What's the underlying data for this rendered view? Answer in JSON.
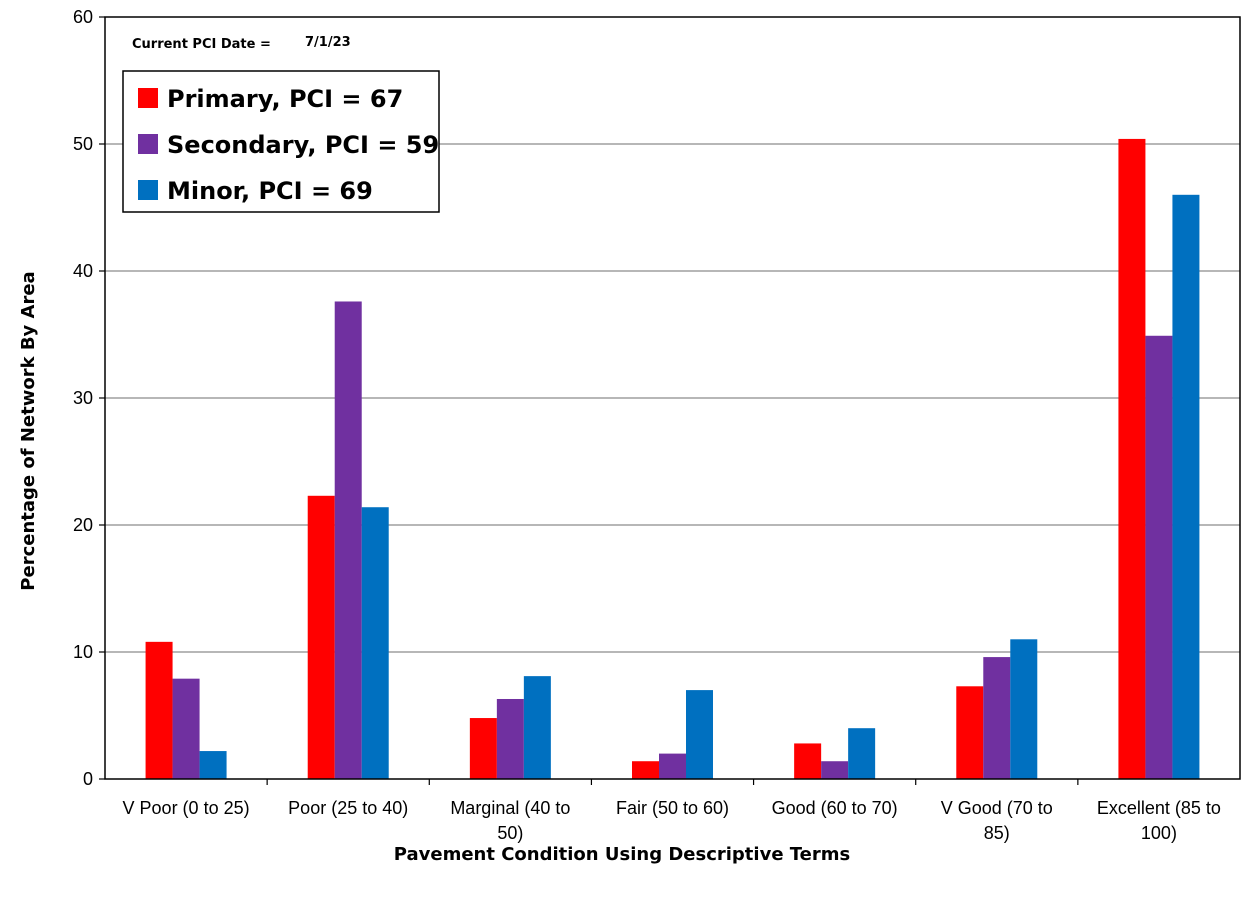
{
  "chart_data": {
    "type": "bar",
    "annotation_label": "Current PCI Date =",
    "annotation_value": "7/1/23",
    "xlabel": "Pavement Condition Using Descriptive Terms",
    "ylabel": "Percentage of Network By Area",
    "ylim": [
      0,
      60
    ],
    "yticks": [
      0,
      10,
      20,
      30,
      40,
      50,
      60
    ],
    "grid": true,
    "legend_position": "top-left",
    "categories": [
      "V Poor (0 to 25)",
      "Poor (25 to 40)",
      "Marginal (40 to 50)",
      "Fair (50 to 60)",
      "Good (60 to 70)",
      "V Good (70 to 85)",
      "Excellent (85 to 100)"
    ],
    "category_label_lines": [
      [
        "V Poor (0 to 25)"
      ],
      [
        "Poor (25 to 40)"
      ],
      [
        "Marginal (40 to",
        "50)"
      ],
      [
        "Fair (50 to 60)"
      ],
      [
        "Good (60 to 70)"
      ],
      [
        "V Good (70 to",
        "85)"
      ],
      [
        "Excellent (85 to",
        "100)"
      ]
    ],
    "series": [
      {
        "name": "Primary, PCI = 67",
        "color": "#ff0000",
        "values": [
          10.8,
          22.3,
          4.8,
          1.4,
          2.8,
          7.3,
          50.4
        ]
      },
      {
        "name": "Secondary, PCI = 59",
        "color": "#7030a0",
        "values": [
          7.9,
          37.6,
          6.3,
          2.0,
          1.4,
          9.6,
          34.9
        ]
      },
      {
        "name": "Minor, PCI = 69",
        "color": "#0070c0",
        "values": [
          2.2,
          21.4,
          8.1,
          7.0,
          4.0,
          11.0,
          46.0
        ]
      }
    ]
  }
}
